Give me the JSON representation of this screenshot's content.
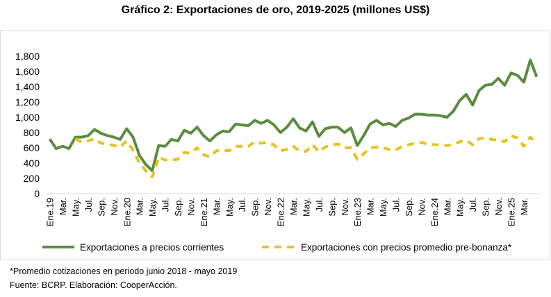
{
  "chart_data": {
    "type": "line",
    "title": "Gráfico 2: Exportaciones de oro, 2019-2025 (millones US$)",
    "xlabel": "",
    "ylabel": "",
    "ylim": [
      0,
      1800
    ],
    "y_ticks": [
      "0",
      "200",
      "400",
      "600",
      "800",
      "1,000",
      "1,200",
      "1,400",
      "1,600",
      "1,800"
    ],
    "x_tick_labels": [
      "Ene.19",
      "Mar.",
      "May.",
      "Jul.",
      "Sep.",
      "Nov.",
      "Ene.20",
      "Mar.",
      "May.",
      "Jul.",
      "Sep.",
      "Nov.",
      "Ene.21",
      "Mar.",
      "May.",
      "Jul.",
      "Sep.",
      "Nov.",
      "Ene.22",
      "Mar.",
      "May.",
      "Jul.",
      "Sep.",
      "Nov.",
      "Ene.23",
      "Mar.",
      "May.",
      "Jul.",
      "Sep.",
      "Nov.",
      "Ene.24",
      "Mar.",
      "May.",
      "Jul.",
      "Sep.",
      "Nov.",
      "Ene.25",
      "Mar."
    ],
    "grid": false,
    "legend_position": "bottom",
    "series": [
      {
        "name": "Exportaciones a precios corrientes",
        "color": "#5b8c3e",
        "style": "solid",
        "values": [
          715,
          590,
          620,
          590,
          740,
          740,
          760,
          840,
          790,
          760,
          740,
          710,
          850,
          740,
          500,
          380,
          300,
          630,
          620,
          710,
          690,
          830,
          790,
          870,
          760,
          690,
          770,
          820,
          810,
          910,
          900,
          890,
          960,
          920,
          960,
          900,
          800,
          870,
          980,
          860,
          820,
          940,
          750,
          850,
          870,
          870,
          800,
          860,
          630,
          760,
          910,
          960,
          900,
          920,
          880,
          960,
          990,
          1040,
          1040,
          1030,
          1030,
          1020,
          1000,
          1080,
          1220,
          1300,
          1160,
          1350,
          1420,
          1430,
          1510,
          1420,
          1580,
          1550,
          1460,
          1750,
          1530
        ]
      },
      {
        "name": "Exportaciones con precios promedio pre-bonanza*",
        "color": "#e6c21e",
        "style": "dashed",
        "values": [
          null,
          null,
          null,
          null,
          720,
          670,
          690,
          720,
          660,
          650,
          630,
          610,
          690,
          570,
          400,
          300,
          220,
          480,
          440,
          440,
          450,
          540,
          530,
          600,
          510,
          480,
          560,
          570,
          560,
          620,
          620,
          620,
          680,
          660,
          670,
          640,
          560,
          580,
          620,
          560,
          550,
          640,
          550,
          610,
          640,
          650,
          600,
          600,
          450,
          520,
          600,
          610,
          600,
          580,
          570,
          620,
          640,
          660,
          670,
          650,
          640,
          640,
          630,
          640,
          680,
          700,
          640,
          720,
          730,
          710,
          700,
          680,
          760,
          730,
          620,
          740,
          650
        ]
      }
    ]
  },
  "notes": {
    "footnote": "*Promedio cotizaciones en periodo junio 2018 - mayo 2019",
    "source": "Fuente: BCRP. Elaboración: CooperAcción."
  }
}
